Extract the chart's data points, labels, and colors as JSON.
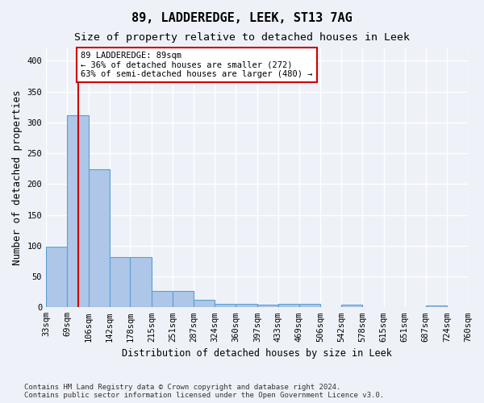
{
  "title1": "89, LADDEREDGE, LEEK, ST13 7AG",
  "title2": "Size of property relative to detached houses in Leek",
  "xlabel": "Distribution of detached houses by size in Leek",
  "ylabel": "Number of detached properties",
  "footer1": "Contains HM Land Registry data © Crown copyright and database right 2024.",
  "footer2": "Contains public sector information licensed under the Open Government Licence v3.0.",
  "annotation_line1": "89 LADDEREDGE: 89sqm",
  "annotation_line2": "← 36% of detached houses are smaller (272)",
  "annotation_line3": "63% of semi-detached houses are larger (480) →",
  "bar_edges": [
    33,
    69,
    106,
    142,
    178,
    215,
    251,
    287,
    324,
    360,
    397,
    433,
    469,
    506,
    542,
    578,
    615,
    651,
    687,
    724,
    760
  ],
  "bar_heights": [
    98,
    312,
    224,
    81,
    81,
    26,
    26,
    12,
    6,
    5,
    4,
    5,
    6,
    0,
    4,
    0,
    0,
    0,
    3,
    0
  ],
  "bar_color": "#aec6e8",
  "bar_edge_color": "#5a9fd4",
  "red_line_x": 89,
  "red_line_color": "#cc0000",
  "annotation_box_color": "#ffffff",
  "annotation_box_edge_color": "#cc0000",
  "bg_color": "#eef2f8",
  "grid_color": "#ffffff",
  "ylim": [
    0,
    420
  ],
  "yticks": [
    0,
    50,
    100,
    150,
    200,
    250,
    300,
    350,
    400
  ],
  "title1_fontsize": 11,
  "title2_fontsize": 9.5,
  "xlabel_fontsize": 8.5,
  "ylabel_fontsize": 9,
  "tick_fontsize": 7.5,
  "annotation_fontsize": 7.5,
  "footer_fontsize": 6.5
}
